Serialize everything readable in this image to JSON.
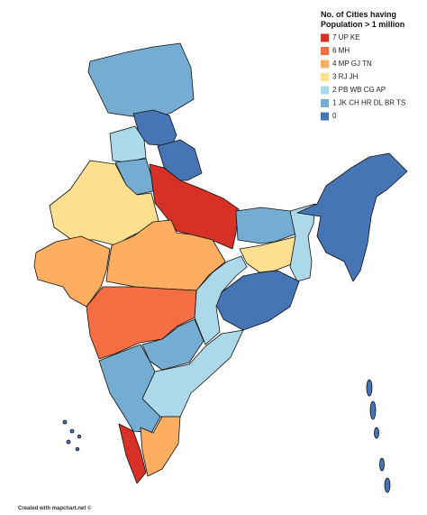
{
  "title_lines": [
    "No. of Cities having",
    "Population > 1 million"
  ],
  "legend": [
    {
      "text": "7 UP KE",
      "color": "#d73027"
    },
    {
      "text": "6 MH",
      "color": "#f46d43"
    },
    {
      "text": "4 MP GJ TN",
      "color": "#fdae61"
    },
    {
      "text": "3 RJ JH",
      "color": "#fee090"
    },
    {
      "text": "2 PB WB CG AP",
      "color": "#abd9e9"
    },
    {
      "text": "1 JK CH HR DL BR TS",
      "color": "#74add1"
    },
    {
      "text": "0",
      "color": "#4575b4"
    }
  ],
  "footer": "Created with mapchart.net ©"
}
